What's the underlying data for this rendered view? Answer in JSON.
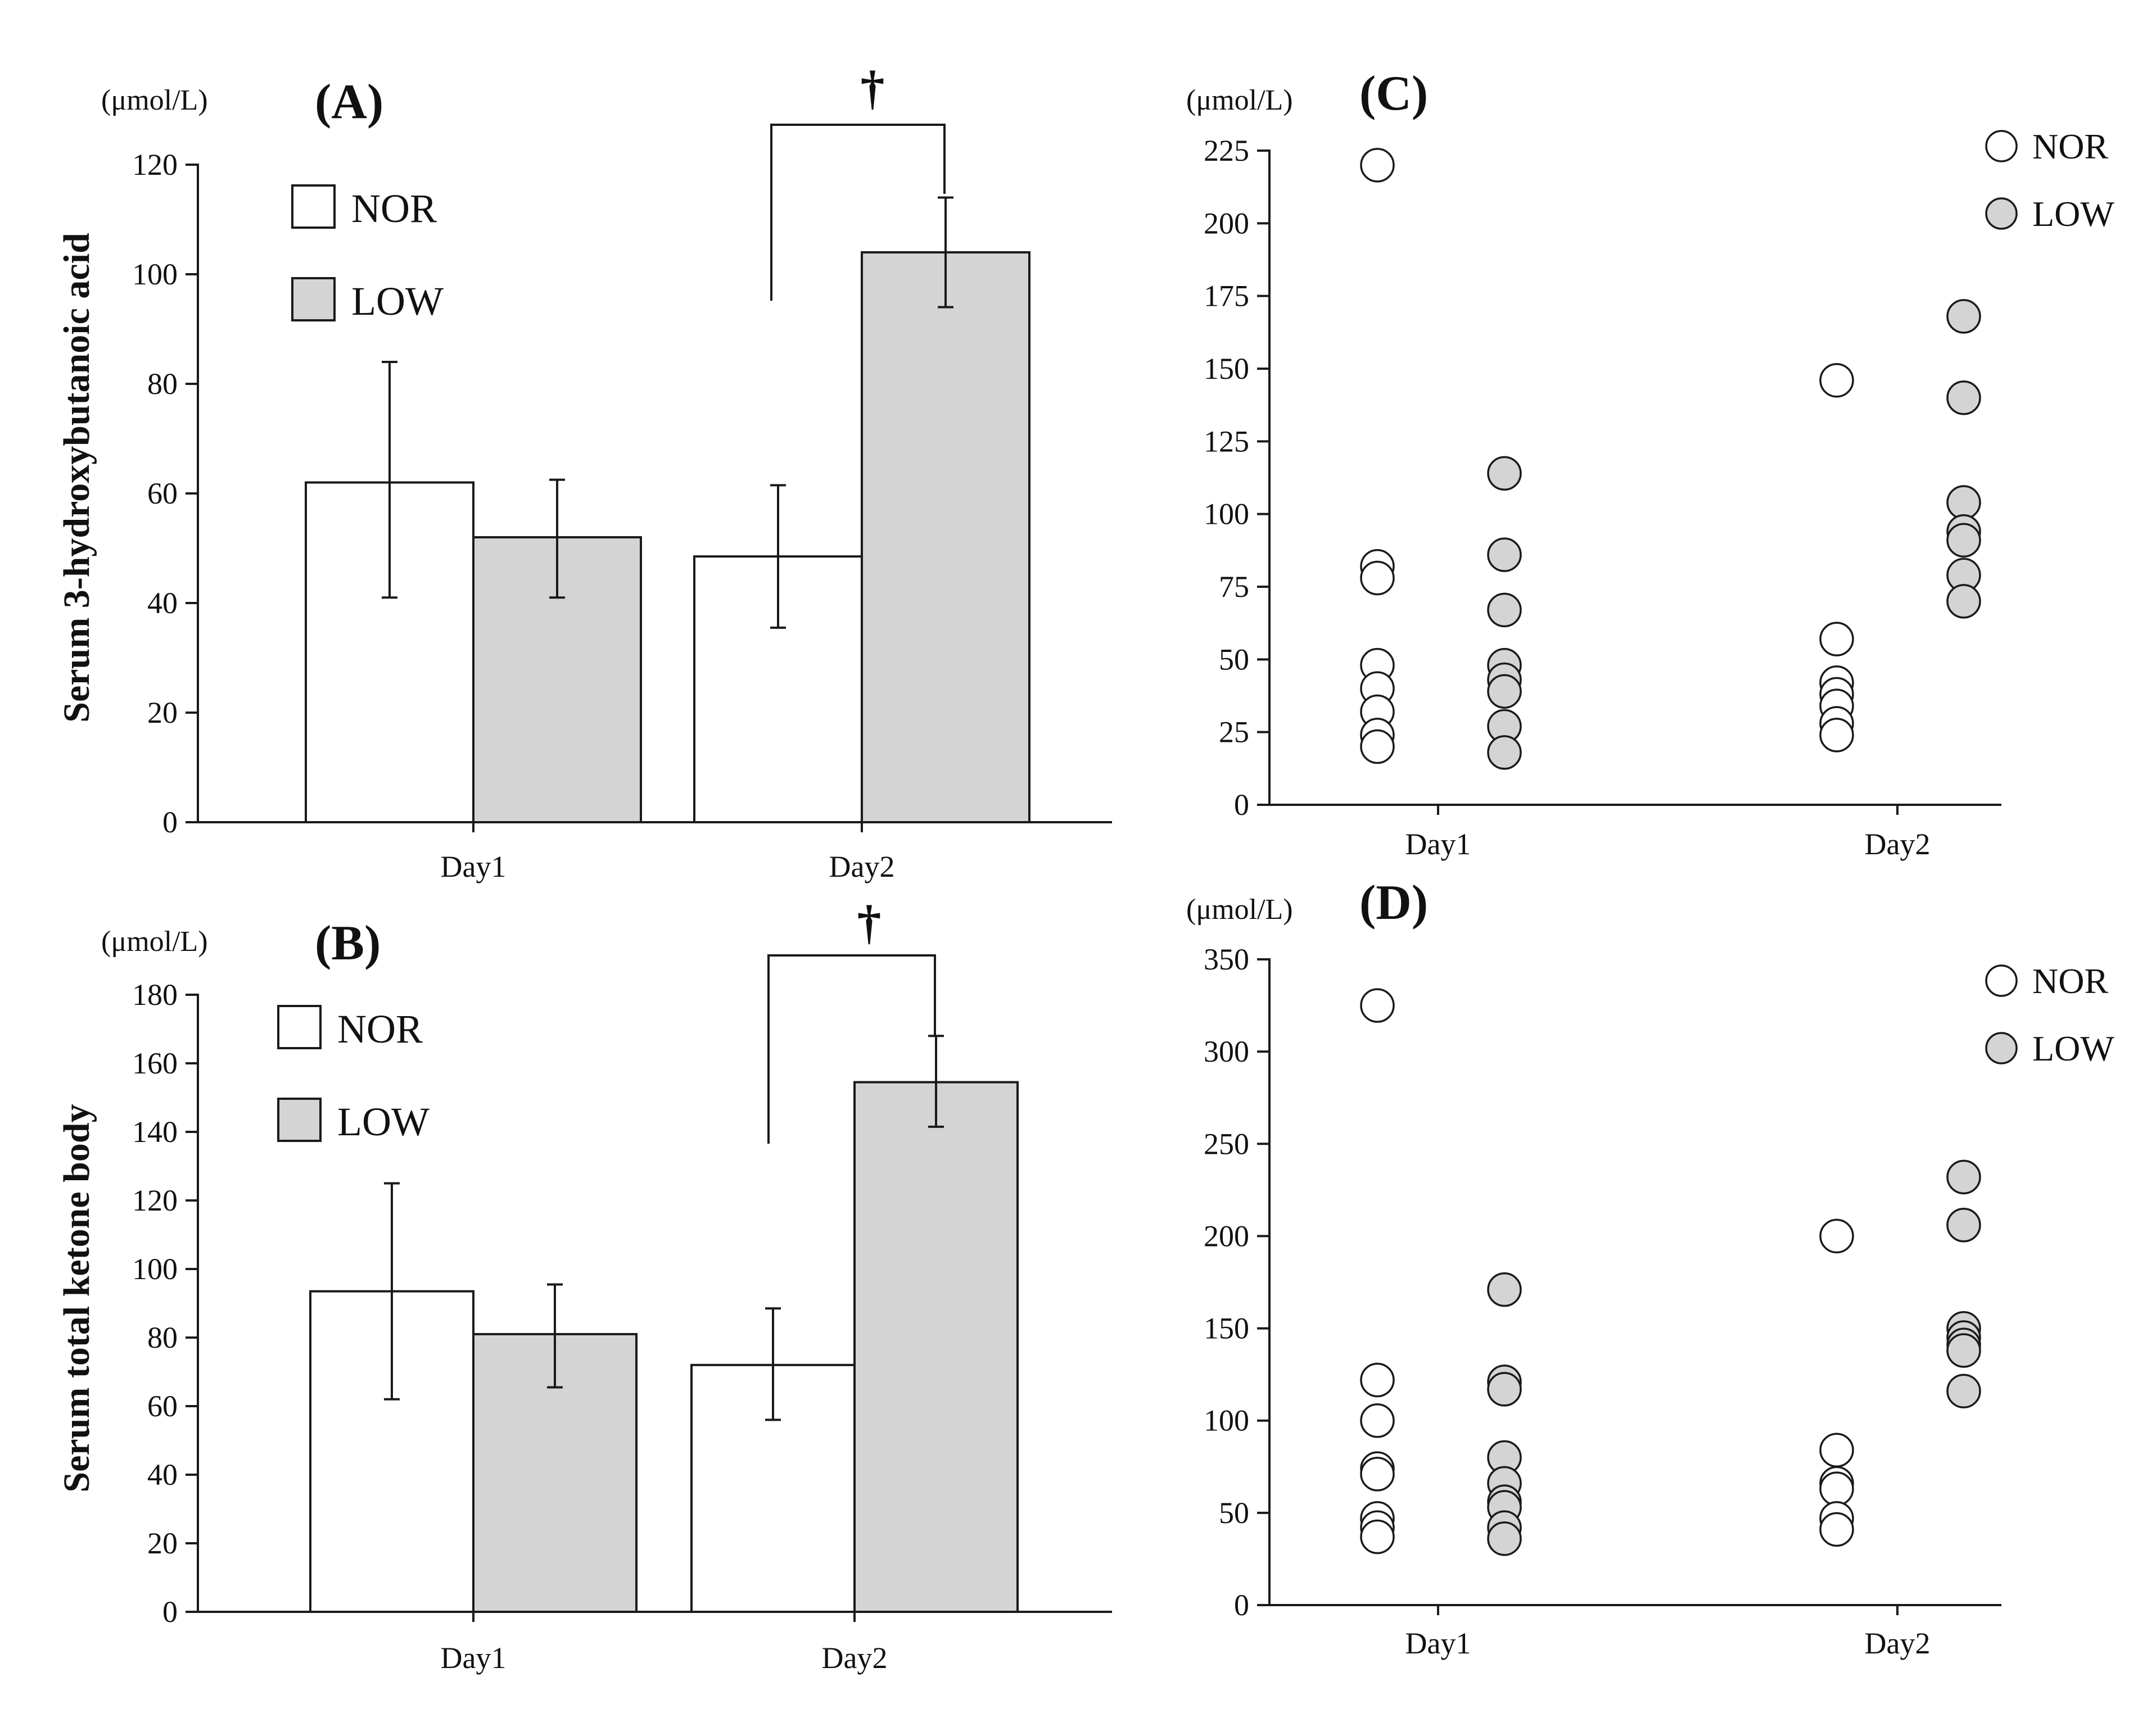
{
  "colors": {
    "nor_fill": "#ffffff",
    "low_fill": "#d4d4d4",
    "stroke": "#1a1a1a"
  },
  "chart_data": [
    {
      "id": "A",
      "type": "bar",
      "panel_label": "(A)",
      "unit": "(μmol/L)",
      "ylabel": "Serum 3-hydroxybutanoic acid",
      "categories": [
        "Day1",
        "Day2"
      ],
      "ylim": [
        0,
        120
      ],
      "yticks": [
        "0",
        "20",
        "40",
        "60",
        "80",
        "100",
        "120"
      ],
      "series": [
        {
          "name": "NOR",
          "values": [
            62,
            48.5
          ],
          "err_low": [
            41,
            35.5
          ],
          "err_high": [
            84,
            61.5
          ]
        },
        {
          "name": "LOW",
          "values": [
            52,
            104
          ],
          "err_low": [
            41,
            94
          ],
          "err_high": [
            62.5,
            114
          ]
        }
      ],
      "significance": {
        "marker": "†",
        "category": "Day2"
      },
      "legend": [
        "NOR",
        "LOW"
      ]
    },
    {
      "id": "B",
      "type": "bar",
      "panel_label": "(B)",
      "unit": "(μmol/L)",
      "ylabel": "Serum total ketone body",
      "categories": [
        "Day1",
        "Day2"
      ],
      "ylim": [
        0,
        180
      ],
      "yticks": [
        "0",
        "20",
        "40",
        "60",
        "80",
        "100",
        "120",
        "140",
        "160",
        "180"
      ],
      "series": [
        {
          "name": "NOR",
          "values": [
            93.5,
            72
          ],
          "err_low": [
            62,
            56
          ],
          "err_high": [
            125,
            88.5
          ]
        },
        {
          "name": "LOW",
          "values": [
            81,
            154.5
          ],
          "err_low": [
            65.5,
            141.5
          ],
          "err_high": [
            95.5,
            168
          ]
        }
      ],
      "significance": {
        "marker": "†",
        "category": "Day2"
      },
      "legend": [
        "NOR",
        "LOW"
      ]
    },
    {
      "id": "C",
      "type": "scatter",
      "panel_label": "(C)",
      "unit": "(μmol/L)",
      "categories": [
        "Day1",
        "Day2"
      ],
      "ylim": [
        0,
        225
      ],
      "yticks": [
        "0",
        "25",
        "50",
        "75",
        "100",
        "125",
        "150",
        "175",
        "200",
        "225"
      ],
      "series": [
        {
          "name": "NOR",
          "values": [
            [
              220,
              82,
              78,
              48,
              40,
              32,
              24,
              20
            ],
            [
              146,
              57,
              42,
              38,
              34,
              28,
              24
            ]
          ]
        },
        {
          "name": "LOW",
          "values": [
            [
              114,
              86,
              67,
              48,
              43,
              39,
              27,
              18
            ],
            [
              168,
              140,
              104,
              94,
              91,
              79,
              70
            ]
          ]
        }
      ],
      "legend": [
        "NOR",
        "LOW"
      ]
    },
    {
      "id": "D",
      "type": "scatter",
      "panel_label": "(D)",
      "unit": "(μmol/L)",
      "categories": [
        "Day1",
        "Day2"
      ],
      "ylim": [
        0,
        350
      ],
      "yticks": [
        "0",
        "50",
        "100",
        "150",
        "200",
        "250",
        "300",
        "350"
      ],
      "series": [
        {
          "name": "NOR",
          "values": [
            [
              325,
              122,
              100,
              74,
              71,
              47,
              42,
              37
            ],
            [
              200,
              84,
              66,
              63,
              47,
              41
            ]
          ]
        },
        {
          "name": "LOW",
          "values": [
            [
              171,
              121,
              117,
              80,
              66,
              56,
              53,
              42,
              36
            ],
            [
              232,
              206,
              150,
              145,
              141,
              138,
              116
            ]
          ]
        }
      ],
      "legend": [
        "NOR",
        "LOW"
      ]
    }
  ]
}
